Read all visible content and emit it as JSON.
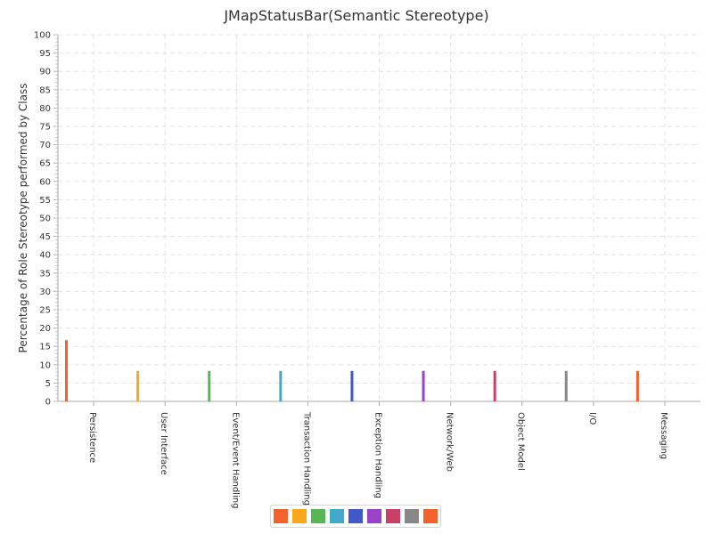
{
  "chart_data": {
    "type": "bar",
    "title": "JMapStatusBar(Semantic Stereotype)",
    "xlabel": "",
    "ylabel": "Percentage of Role Stereotype performed by Class",
    "ylim": [
      0,
      100
    ],
    "ytick_step": 5,
    "grid": true,
    "legend_position": "bottom",
    "categories": [
      "Persistence",
      "User Interface",
      "Event/Event Handling",
      "Transaction Handling",
      "Exception Handling",
      "Network/Web",
      "Object Model",
      "I/O",
      "Messaging"
    ],
    "values": [
      16.7,
      8.3,
      8.3,
      8.3,
      8.3,
      8.3,
      8.3,
      8.3,
      8.3
    ],
    "colors": [
      "#f3622d",
      "#fba71b",
      "#57b757",
      "#41a9c9",
      "#4258c9",
      "#9a42c8",
      "#c84164",
      "#888888",
      "#f3622d"
    ]
  }
}
